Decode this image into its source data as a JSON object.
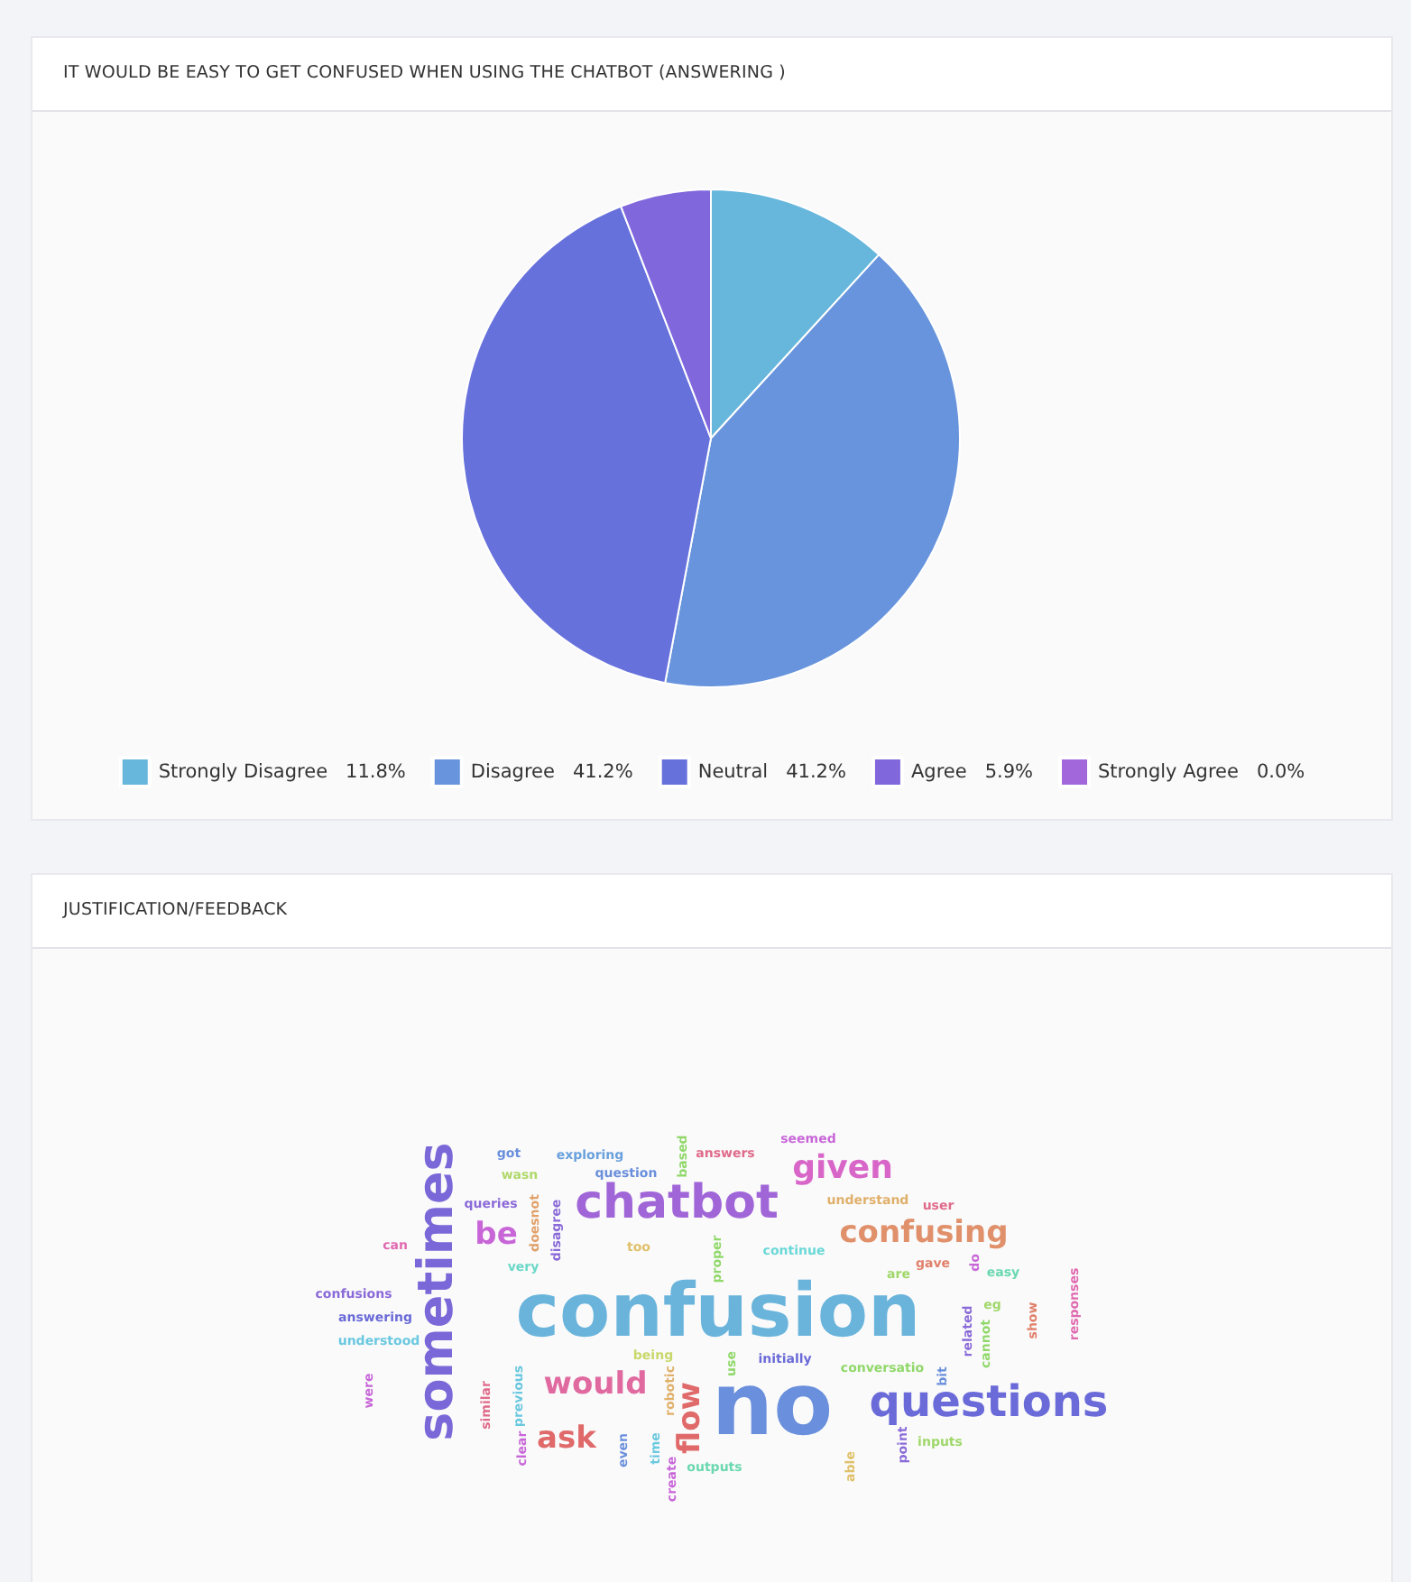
{
  "chart_data": [
    {
      "type": "pie",
      "title": "IT WOULD BE EASY TO GET CONFUSED WHEN USING THE CHATBOT (ANSWERING )",
      "categories": [
        "Strongly Disagree",
        "Disagree",
        "Neutral",
        "Agree",
        "Strongly Agree"
      ],
      "values": [
        11.8,
        41.2,
        41.2,
        5.9,
        0.0
      ],
      "colors": [
        "#67b7dc",
        "#6794dc",
        "#6771dc",
        "#8067dc",
        "#a367dc"
      ],
      "value_labels": [
        "11.8%",
        "41.2%",
        "41.2%",
        "5.9%",
        "0.0%"
      ],
      "legend": "bottom"
    },
    {
      "type": "other",
      "title": "JUSTIFICATION/FEEDBACK",
      "annotations": [
        "sometimes",
        "confusion",
        "no",
        "questions",
        "chatbot",
        "given",
        "confusing",
        "be",
        "would",
        "ask",
        "flow",
        "got",
        "exploring",
        "question",
        "based",
        "answers",
        "seemed",
        "wasn",
        "queries",
        "doesnot",
        "disagree",
        "too",
        "understand",
        "user",
        "can",
        "very",
        "proper",
        "continue",
        "gave",
        "do",
        "are",
        "easy",
        "eg",
        "confusions",
        "answering",
        "understood",
        "related",
        "cannot",
        "show",
        "responses",
        "being",
        "initially",
        "use",
        "robotic",
        "conversatio",
        "bit",
        "were",
        "similar",
        "previous",
        "clear",
        "even",
        "time",
        "create",
        "outputs",
        "point",
        "inputs",
        "able"
      ]
    }
  ]
}
